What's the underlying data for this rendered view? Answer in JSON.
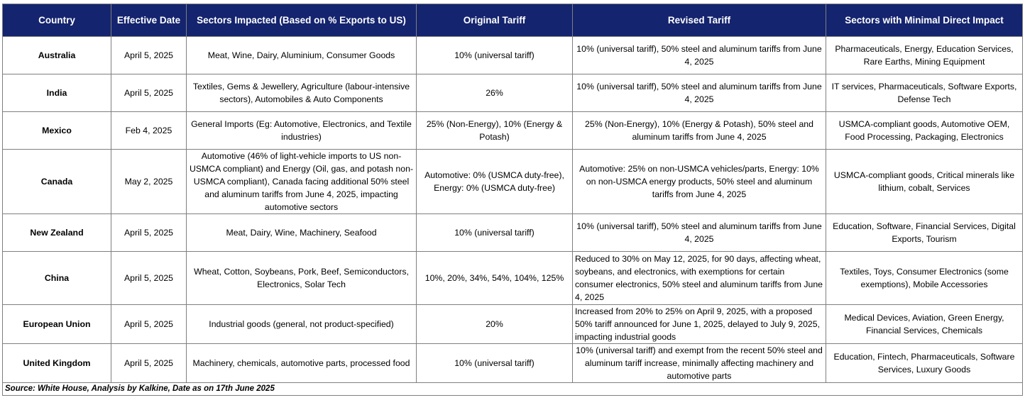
{
  "headers": {
    "country": "Country",
    "effective_date": "Effective Date",
    "sectors_impacted": "Sectors Impacted (Based on % Exports to US)",
    "original_tariff": "Original Tariff",
    "revised_tariff": "Revised Tariff",
    "minimal_impact": "Sectors with Minimal Direct Impact"
  },
  "rows": [
    {
      "country": "Australia",
      "effective_date": "April 5, 2025",
      "sectors_impacted": "Meat, Wine, Dairy, Aluminium, Consumer Goods",
      "original_tariff": "10% (universal tariff)",
      "revised_tariff": "10% (universal tariff),  50% steel and aluminum tariffs from June 4, 2025",
      "minimal_impact": "Pharmaceuticals, Energy, Education Services, Rare Earths, Mining Equipment"
    },
    {
      "country": "India",
      "effective_date": "April 5, 2025",
      "sectors_impacted": "Textiles, Gems & Jewellery, Agriculture (labour-intensive sectors), Automobiles & Auto Components",
      "original_tariff": "26%",
      "revised_tariff": "10% (universal tariff),  50% steel and aluminum tariffs from June 4, 2025",
      "minimal_impact": "IT services, Pharmaceuticals, Software Exports, Defense Tech"
    },
    {
      "country": "Mexico",
      "effective_date": "Feb 4, 2025",
      "sectors_impacted": "General Imports (Eg: Automotive, Electronics, and Textile industries)",
      "original_tariff": "25% (Non-Energy), 10% (Energy & Potash)",
      "revised_tariff": "25% (Non-Energy), 10% (Energy & Potash),  50% steel and aluminum tariffs from June 4, 2025",
      "minimal_impact": "USMCA-compliant goods, Automotive OEM, Food Processing, Packaging, Electronics"
    },
    {
      "country": "Canada",
      "effective_date": "May 2, 2025",
      "sectors_impacted": "Automotive (46% of light-vehicle imports to US non-USMCA compliant) and Energy (Oil, gas, and potash non-USMCA compliant), Canada facing additional 50% steel and aluminum tariffs from June 4, 2025, impacting automotive sectors",
      "original_tariff": "Automotive: 0% (USMCA duty-free), Energy: 0% (USMCA duty-free)",
      "revised_tariff": "Automotive: 25% on non-USMCA vehicles/parts, Energy: 10% on non-USMCA energy products,  50% steel and aluminum tariffs from June 4, 2025",
      "minimal_impact": "USMCA-compliant goods, Critical minerals like lithium, cobalt, Services"
    },
    {
      "country": "New Zealand",
      "effective_date": "April 5, 2025",
      "sectors_impacted": "Meat, Dairy, Wine, Machinery, Seafood",
      "original_tariff": "10% (universal tariff)",
      "revised_tariff": "10% (universal tariff),  50% steel and aluminum tariffs from June 4, 2025",
      "minimal_impact": "Education, Software, Financial Services, Digital Exports, Tourism"
    },
    {
      "country": "China",
      "effective_date": "April 5, 2025",
      "sectors_impacted": "Wheat, Cotton, Soybeans, Pork, Beef, Semiconductors, Electronics, Solar Tech",
      "original_tariff": "10%, 20%, 34%, 54%, 104%, 125%",
      "revised_tariff": "Reduced to 30% on May 12, 2025, for 90 days, affecting wheat, soybeans, and electronics, with exemptions for certain consumer electronics,  50% steel and aluminum tariffs from June 4, 2025",
      "minimal_impact": "Textiles, Toys, Consumer Electronics (some exemptions), Mobile Accessories"
    },
    {
      "country": "European Union",
      "effective_date": "April 5, 2025",
      "sectors_impacted": "Industrial goods (general, not product-specified)",
      "original_tariff": "20%",
      "revised_tariff": "Increased from 20% to 25% on April 9, 2025, with a proposed 50% tariff announced for June 1, 2025, delayed to July 9, 2025, impacting industrial goods",
      "minimal_impact": "Medical Devices, Aviation, Green Energy, Financial Services, Chemicals"
    },
    {
      "country": "United Kingdom",
      "effective_date": "April 5, 2025",
      "sectors_impacted": "Machinery, chemicals, automotive parts, processed food",
      "original_tariff": "10% (universal tariff)",
      "revised_tariff": "10% (universal tariff) and exempt from the recent 50% steel and aluminum tariff increase, minimally affecting machinery and automotive parts",
      "minimal_impact": "Education, Fintech, Pharmaceuticals, Software Services, Luxury Goods"
    }
  ],
  "footer": {
    "source": "Source: White House, Analysis by Kalkine, Date as on 17th June 2025"
  },
  "colors": {
    "header_background": "#14246e",
    "header_text": "#ffffff",
    "border": "#7f7f7f"
  }
}
